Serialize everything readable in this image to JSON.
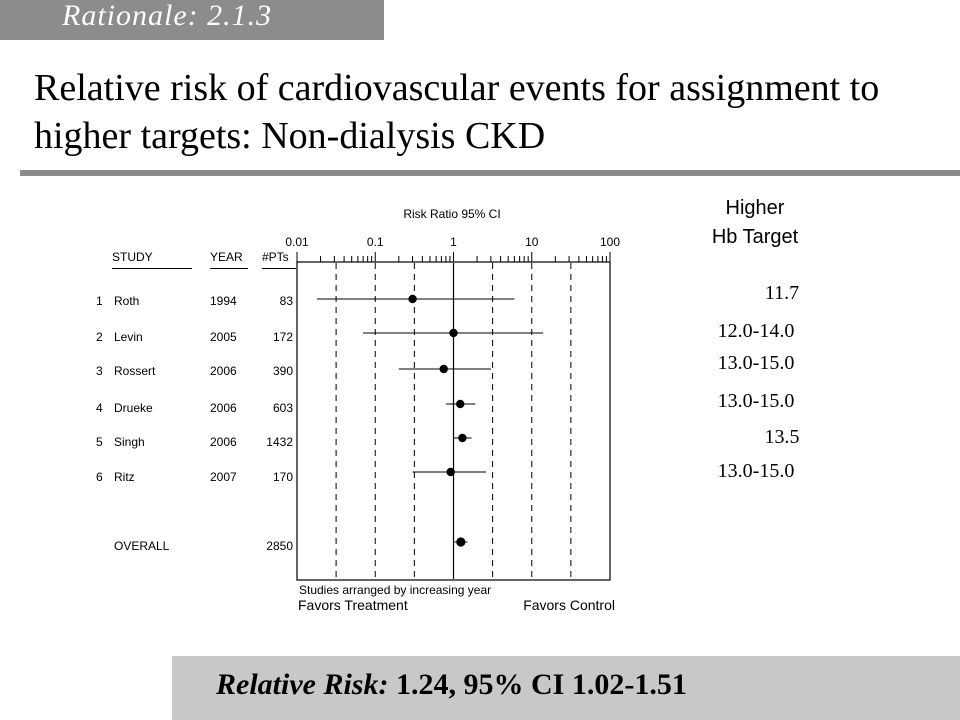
{
  "slide": {
    "section_tag": "Rationale: 2.1.3",
    "title": "Relative risk of cardiovascular events for assignment to higher targets: Non-dialysis CKD",
    "footer_label": "Relative Risk:",
    "footer_value": " 1.24, 95% CI 1.02-1.51"
  },
  "target_column": {
    "header_line1": "Higher",
    "header_line2": "Hb Target",
    "values": [
      "11.7",
      "12.0-14.0",
      "13.0-15.0",
      "13.0-15.0",
      "13.5",
      "13.0-15.0"
    ]
  },
  "chart_data": {
    "type": "forest",
    "title": "Risk Ratio  95%  CI",
    "scale": "log",
    "x_ticks": [
      "0.01",
      "0.1",
      "1",
      "10",
      "100"
    ],
    "xlim": [
      0.01,
      100
    ],
    "columns": [
      "STUDY",
      "YEAR",
      "#PTs"
    ],
    "rows": [
      {
        "index": "1",
        "study": "Roth",
        "year": "1994",
        "pts": "83",
        "rr": 0.3,
        "lo": 0.018,
        "hi": 6.0
      },
      {
        "index": "2",
        "study": "Levin",
        "year": "2005",
        "pts": "172",
        "rr": 1.0,
        "lo": 0.07,
        "hi": 14.0
      },
      {
        "index": "3",
        "study": "Rossert",
        "year": "2006",
        "pts": "390",
        "rr": 0.75,
        "lo": 0.2,
        "hi": 3.0
      },
      {
        "index": "4",
        "study": "Drueke",
        "year": "2006",
        "pts": "603",
        "rr": 1.22,
        "lo": 0.8,
        "hi": 1.9
      },
      {
        "index": "5",
        "study": "Singh",
        "year": "2006",
        "pts": "1432",
        "rr": 1.3,
        "lo": 1.0,
        "hi": 1.7
      },
      {
        "index": "6",
        "study": "Ritz",
        "year": "2007",
        "pts": "170",
        "rr": 0.92,
        "lo": 0.3,
        "hi": 2.6
      }
    ],
    "overall": {
      "study": "OVERALL",
      "pts": "2850",
      "rr": 1.24,
      "lo": 1.02,
      "hi": 1.51
    },
    "footnote": "Studies arranged by increasing year",
    "left_label": "Favors Treatment",
    "right_label": "Favors Control"
  }
}
